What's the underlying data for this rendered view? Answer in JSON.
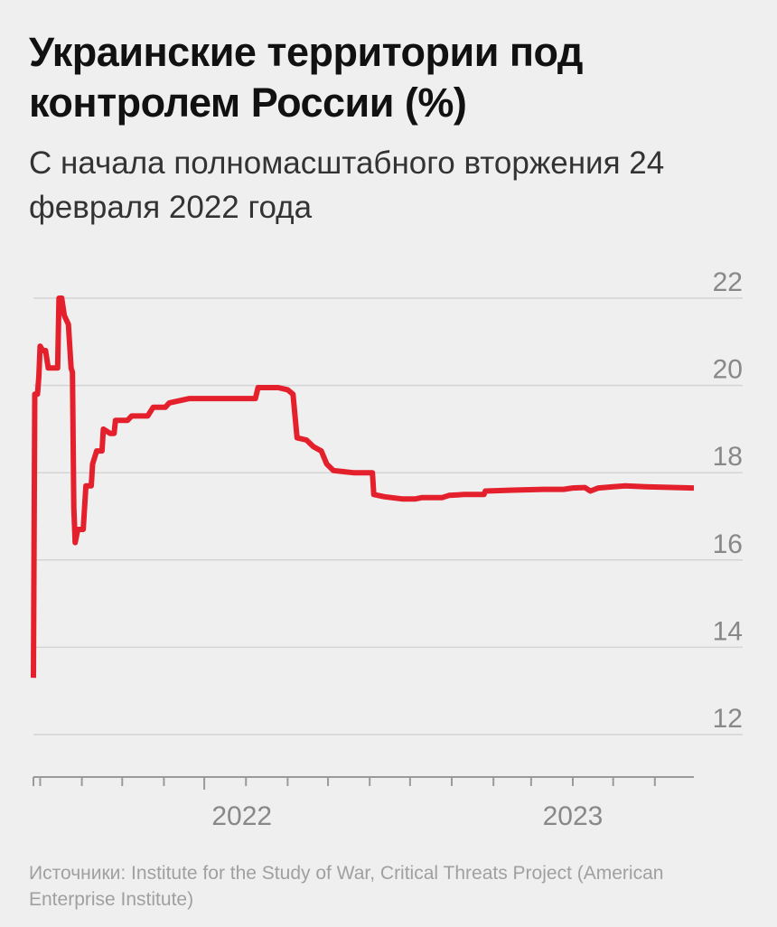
{
  "header": {
    "title": "Украинские территории под контролем России (%)",
    "subtitle": "С начала полномасштабного вторжения 24 февраля 2022 года"
  },
  "source": "Источники: Institute for the Study of War, Critical Threats Project (American Enterprise Institute)",
  "colors": {
    "line": "#e3202b",
    "grid": "#d4d4d4",
    "tick_text": "#888888",
    "background": "#efefef"
  },
  "chart_data": {
    "type": "line",
    "title": "Украинские территории под контролем России (%)",
    "subtitle": "С начала полномасштабного вторжения 24 февраля 2022 года",
    "xlabel": "",
    "ylabel": "",
    "x_ticks": [
      "2022",
      "2023"
    ],
    "y_ticks": [
      12,
      14,
      16,
      18,
      20,
      22
    ],
    "ylim": [
      12,
      22
    ],
    "xlim": [
      "2022-02-24",
      "2023-06-30"
    ],
    "grid": true,
    "series": [
      {
        "points": [
          [
            "2022-02-24",
            13.3
          ],
          [
            "2022-02-25",
            19.8
          ],
          [
            "2022-02-27",
            19.8
          ],
          [
            "2022-02-28",
            20.2
          ],
          [
            "2022-03-01",
            20.9
          ],
          [
            "2022-03-03",
            20.8
          ],
          [
            "2022-03-05",
            20.8
          ],
          [
            "2022-03-07",
            20.4
          ],
          [
            "2022-03-11",
            20.4
          ],
          [
            "2022-03-14",
            20.4
          ],
          [
            "2022-03-15",
            22.0
          ],
          [
            "2022-03-17",
            22.0
          ],
          [
            "2022-03-19",
            21.6
          ],
          [
            "2022-03-22",
            21.4
          ],
          [
            "2022-03-24",
            20.4
          ],
          [
            "2022-03-25",
            20.3
          ],
          [
            "2022-03-26",
            17.2
          ],
          [
            "2022-03-27",
            16.4
          ],
          [
            "2022-03-29",
            16.7
          ],
          [
            "2022-04-02",
            16.7
          ],
          [
            "2022-04-04",
            17.7
          ],
          [
            "2022-04-08",
            17.7
          ],
          [
            "2022-04-09",
            18.2
          ],
          [
            "2022-04-12",
            18.5
          ],
          [
            "2022-04-16",
            18.5
          ],
          [
            "2022-04-17",
            19.0
          ],
          [
            "2022-04-22",
            18.9
          ],
          [
            "2022-04-25",
            18.9
          ],
          [
            "2022-04-26",
            19.2
          ],
          [
            "2022-05-05",
            19.2
          ],
          [
            "2022-05-08",
            19.3
          ],
          [
            "2022-05-15",
            19.3
          ],
          [
            "2022-05-20",
            19.3
          ],
          [
            "2022-05-24",
            19.5
          ],
          [
            "2022-06-02",
            19.5
          ],
          [
            "2022-06-05",
            19.6
          ],
          [
            "2022-06-20",
            19.7
          ],
          [
            "2022-07-10",
            19.7
          ],
          [
            "2022-08-08",
            19.7
          ],
          [
            "2022-08-10",
            19.95
          ],
          [
            "2022-08-25",
            19.95
          ],
          [
            "2022-09-01",
            19.9
          ],
          [
            "2022-09-05",
            19.8
          ],
          [
            "2022-09-08",
            18.8
          ],
          [
            "2022-09-15",
            18.75
          ],
          [
            "2022-09-20",
            18.6
          ],
          [
            "2022-09-26",
            18.5
          ],
          [
            "2022-09-30",
            18.2
          ],
          [
            "2022-10-05",
            18.05
          ],
          [
            "2022-10-20",
            18.0
          ],
          [
            "2022-11-03",
            18.0
          ],
          [
            "2022-11-04",
            17.5
          ],
          [
            "2022-11-12",
            17.45
          ],
          [
            "2022-11-25",
            17.4
          ],
          [
            "2022-12-05",
            17.4
          ],
          [
            "2022-12-10",
            17.43
          ],
          [
            "2022-12-25",
            17.43
          ],
          [
            "2022-12-30",
            17.48
          ],
          [
            "2023-01-10",
            17.5
          ],
          [
            "2023-01-25",
            17.5
          ],
          [
            "2023-01-26",
            17.58
          ],
          [
            "2023-02-15",
            17.6
          ],
          [
            "2023-03-10",
            17.62
          ],
          [
            "2023-03-25",
            17.62
          ],
          [
            "2023-04-01",
            17.65
          ],
          [
            "2023-04-10",
            17.66
          ],
          [
            "2023-04-14",
            17.58
          ],
          [
            "2023-04-20",
            17.65
          ],
          [
            "2023-05-01",
            17.68
          ],
          [
            "2023-05-10",
            17.7
          ],
          [
            "2023-05-25",
            17.68
          ],
          [
            "2023-06-30",
            17.65
          ]
        ]
      }
    ]
  }
}
